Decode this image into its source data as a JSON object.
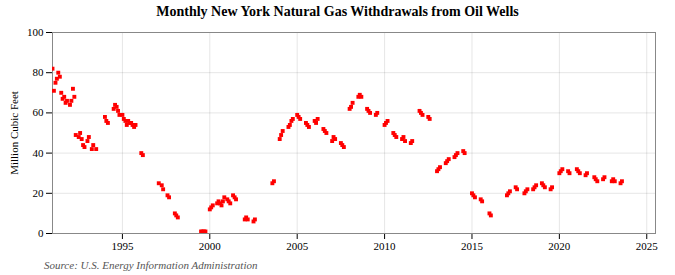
{
  "chart_data": {
    "type": "scatter",
    "title": "Monthly New York Natural Gas Withdrawals from Oil Wells",
    "ylabel": "Million Cubic Feet",
    "source": "Source: U.S. Energy Information Administration",
    "color": "#ff0000",
    "marker": "square",
    "grid": true,
    "xlim": [
      1991.0,
      2025.5
    ],
    "ylim": [
      0,
      100
    ],
    "xticks": [
      1995,
      2000,
      2005,
      2010,
      2015,
      2020,
      2025
    ],
    "yticks": [
      0,
      20,
      40,
      60,
      80,
      100
    ],
    "x": [
      1991.0,
      1991.08,
      1991.17,
      1991.25,
      1991.33,
      1991.42,
      1991.5,
      1991.58,
      1991.67,
      1991.75,
      1991.83,
      1992.0,
      1992.08,
      1992.17,
      1992.25,
      1992.33,
      1992.5,
      1992.58,
      1992.67,
      1992.75,
      1992.83,
      1993.0,
      1993.08,
      1993.25,
      1993.33,
      1993.5,
      1994.0,
      1994.08,
      1994.17,
      1994.5,
      1994.58,
      1994.67,
      1994.75,
      1994.83,
      1995.0,
      1995.08,
      1995.17,
      1995.25,
      1995.33,
      1995.42,
      1995.5,
      1995.58,
      1995.67,
      1995.75,
      1996.08,
      1996.17,
      1997.08,
      1997.25,
      1997.33,
      1997.58,
      1997.67,
      1998.0,
      1998.08,
      1998.17,
      1999.5,
      1999.58,
      1999.67,
      1999.75,
      2000.0,
      2000.08,
      2000.17,
      2000.42,
      2000.5,
      2000.58,
      2000.67,
      2000.75,
      2000.83,
      2001.0,
      2001.08,
      2001.17,
      2001.33,
      2001.42,
      2001.5,
      2002.0,
      2002.08,
      2002.17,
      2002.5,
      2002.58,
      2003.58,
      2003.67,
      2004.0,
      2004.08,
      2004.17,
      2004.5,
      2004.58,
      2004.67,
      2004.75,
      2005.0,
      2005.08,
      2005.17,
      2005.5,
      2005.58,
      2005.67,
      2006.0,
      2006.08,
      2006.17,
      2006.5,
      2006.58,
      2006.67,
      2007.0,
      2007.08,
      2007.17,
      2007.5,
      2007.58,
      2007.67,
      2008.0,
      2008.08,
      2008.17,
      2008.5,
      2008.58,
      2008.67,
      2009.0,
      2009.08,
      2009.17,
      2009.5,
      2009.58,
      2010.0,
      2010.08,
      2010.17,
      2010.5,
      2010.58,
      2010.67,
      2011.0,
      2011.08,
      2011.17,
      2011.5,
      2011.58,
      2012.0,
      2012.08,
      2012.17,
      2012.5,
      2012.58,
      2013.0,
      2013.08,
      2013.17,
      2013.5,
      2013.58,
      2013.67,
      2014.0,
      2014.08,
      2014.17,
      2014.5,
      2014.58,
      2015.0,
      2015.08,
      2015.17,
      2015.5,
      2015.58,
      2016.0,
      2016.08,
      2017.0,
      2017.08,
      2017.17,
      2017.5,
      2017.58,
      2018.0,
      2018.08,
      2018.17,
      2018.5,
      2018.58,
      2018.67,
      2019.0,
      2019.08,
      2019.17,
      2019.5,
      2019.58,
      2020.0,
      2020.08,
      2020.17,
      2020.5,
      2020.58,
      2021.0,
      2021.08,
      2021.17,
      2021.5,
      2021.58,
      2022.0,
      2022.08,
      2022.17,
      2022.5,
      2022.58,
      2023.0,
      2023.08,
      2023.17,
      2023.5,
      2023.58
    ],
    "values": [
      82,
      71,
      75,
      77,
      80,
      78,
      70,
      67,
      68,
      65,
      66,
      64,
      66,
      72,
      68,
      49,
      48,
      50,
      47,
      44,
      43,
      46,
      48,
      42,
      44,
      42,
      58,
      56,
      55,
      62,
      64,
      63,
      61,
      59,
      59,
      57,
      56,
      54,
      56,
      55,
      55,
      54,
      53,
      54,
      40,
      39,
      25,
      24,
      22,
      19,
      18,
      10,
      9,
      8,
      1,
      1,
      1,
      1,
      12,
      13,
      14,
      15,
      16,
      15,
      14,
      16,
      18,
      17,
      16,
      15,
      19,
      18,
      17,
      7,
      8,
      7,
      6,
      7,
      25,
      26,
      47,
      49,
      51,
      53,
      54,
      56,
      57,
      59,
      58,
      57,
      55,
      54,
      53,
      56,
      55,
      57,
      52,
      51,
      50,
      46,
      48,
      47,
      45,
      44,
      43,
      62,
      63,
      65,
      68,
      69,
      68,
      62,
      61,
      60,
      59,
      60,
      54,
      55,
      56,
      50,
      49,
      48,
      47,
      48,
      46,
      45,
      46,
      61,
      60,
      59,
      58,
      57,
      31,
      32,
      33,
      35,
      36,
      37,
      38,
      39,
      40,
      41,
      40,
      20,
      19,
      18,
      17,
      16,
      10,
      9,
      19,
      20,
      21,
      23,
      22,
      20,
      21,
      22,
      22,
      23,
      24,
      25,
      24,
      23,
      22,
      23,
      30,
      31,
      32,
      31,
      30,
      32,
      31,
      30,
      29,
      30,
      28,
      27,
      26,
      27,
      28,
      26,
      27,
      26,
      25,
      26
    ]
  }
}
